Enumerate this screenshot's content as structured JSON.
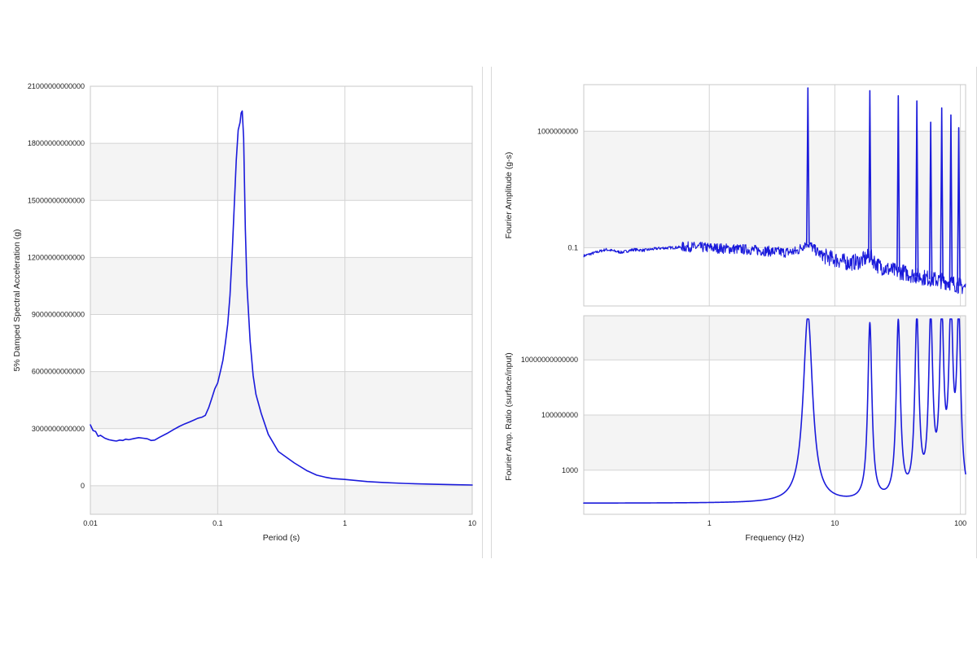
{
  "colors": {
    "series": "#1a1adb",
    "band": "#f4f4f4",
    "grid": "#d4d4d4"
  },
  "chart_data": [
    {
      "id": "response-spectrum",
      "type": "line",
      "xlabel": "Period (s)",
      "ylabel": "5% Damped Spectral Acceleration (g)",
      "xscale": "log",
      "xlim": [
        0.01,
        10
      ],
      "ylim": [
        -1500000000000,
        21000000000000
      ],
      "x_ticks": [
        {
          "value": 0.01,
          "label": "0.01"
        },
        {
          "value": 0.1,
          "label": "0.1"
        },
        {
          "value": 1,
          "label": "1"
        },
        {
          "value": 10,
          "label": "10"
        }
      ],
      "y_ticks": [
        {
          "value": 21000000000000,
          "label": "21000000000000"
        },
        {
          "value": 18000000000000,
          "label": "18000000000000"
        },
        {
          "value": 15000000000000,
          "label": "15000000000000"
        },
        {
          "value": 12000000000000,
          "label": "12000000000000"
        },
        {
          "value": 9000000000000,
          "label": "9000000000000"
        },
        {
          "value": 6000000000000,
          "label": "6000000000000"
        },
        {
          "value": 3000000000000,
          "label": "3000000000000"
        },
        {
          "value": 0,
          "label": "0"
        }
      ],
      "grid": true,
      "series": [
        {
          "x": [
            0.01,
            0.0105,
            0.011,
            0.0115,
            0.012,
            0.013,
            0.014,
            0.015,
            0.016,
            0.017,
            0.018,
            0.019,
            0.02,
            0.022,
            0.024,
            0.026,
            0.028,
            0.03,
            0.032,
            0.035,
            0.04,
            0.045,
            0.05,
            0.055,
            0.06,
            0.065,
            0.07,
            0.075,
            0.08,
            0.085,
            0.09,
            0.095,
            0.1,
            0.105,
            0.11,
            0.115,
            0.12,
            0.125,
            0.13,
            0.135,
            0.14,
            0.145,
            0.15,
            0.153,
            0.156,
            0.16,
            0.165,
            0.17,
            0.18,
            0.19,
            0.2,
            0.22,
            0.25,
            0.3,
            0.4,
            0.5,
            0.6,
            0.7,
            0.8,
            1,
            1.5,
            2,
            3,
            5,
            7,
            10
          ],
          "y": [
            3200000000000,
            2900000000000,
            2850000000000,
            2600000000000,
            2650000000000,
            2500000000000,
            2420000000000,
            2380000000000,
            2350000000000,
            2400000000000,
            2380000000000,
            2450000000000,
            2420000000000,
            2480000000000,
            2530000000000,
            2500000000000,
            2470000000000,
            2380000000000,
            2400000000000,
            2550000000000,
            2750000000000,
            2950000000000,
            3120000000000,
            3250000000000,
            3350000000000,
            3450000000000,
            3550000000000,
            3600000000000,
            3700000000000,
            4100000000000,
            4600000000000,
            5100000000000,
            5400000000000,
            6000000000000,
            6600000000000,
            7500000000000,
            8500000000000,
            10000000000000,
            12200000000000,
            14700000000000,
            17100000000000,
            18700000000000,
            19100000000000,
            19600000000000,
            19700000000000,
            18300000000000,
            13500000000000,
            10500000000000,
            7600000000000,
            5800000000000,
            4800000000000,
            3800000000000,
            2700000000000,
            1800000000000,
            1200000000000,
            800000000000,
            560000000000,
            450000000000,
            380000000000,
            330000000000,
            220000000000,
            170000000000,
            120000000000,
            80000000000,
            60000000000,
            40000000000
          ]
        }
      ]
    },
    {
      "id": "fourier-amplitude",
      "type": "line",
      "xlabel": "",
      "ylabel": "Fourier Amplitude (g-s)",
      "xscale": "log",
      "yscale": "log",
      "xlim": [
        0.1,
        110
      ],
      "ylim": [
        1e-06,
        10000000000000
      ],
      "x_ticks": [
        {
          "value": 1,
          "label": ""
        },
        {
          "value": 10,
          "label": ""
        },
        {
          "value": 100,
          "label": ""
        }
      ],
      "y_ticks": [
        {
          "value": 1000000000,
          "label": "1000000000"
        },
        {
          "value": 0.1,
          "label": "0.1"
        }
      ],
      "grid": true,
      "baseline": [
        [
          0.1,
          0.02
        ],
        [
          0.15,
          0.07
        ],
        [
          0.2,
          0.04
        ],
        [
          0.25,
          0.07
        ],
        [
          0.3,
          0.06
        ],
        [
          0.4,
          0.09
        ],
        [
          0.5,
          0.1
        ],
        [
          0.7,
          0.12
        ],
        [
          1,
          0.1
        ],
        [
          1.5,
          0.08
        ],
        [
          2,
          0.07
        ],
        [
          3,
          0.05
        ],
        [
          4,
          0.04
        ],
        [
          5,
          0.05
        ],
        [
          6,
          0.3
        ],
        [
          7,
          0.06
        ],
        [
          8,
          0.02
        ],
        [
          10,
          0.01
        ],
        [
          13,
          0.005
        ],
        [
          16,
          0.007
        ],
        [
          19,
          0.02
        ],
        [
          22,
          0.003
        ],
        [
          26,
          0.0015
        ],
        [
          30,
          0.001
        ],
        [
          35,
          0.0008
        ],
        [
          40,
          0.0005
        ],
        [
          50,
          0.0003
        ],
        [
          60,
          0.0002
        ],
        [
          70,
          0.00015
        ],
        [
          85,
          0.0001
        ],
        [
          100,
          5e-05
        ],
        [
          110,
          4e-05
        ]
      ],
      "peaks": [
        {
          "x": 6.1,
          "y": 100000000000000
        },
        {
          "x": 19,
          "y": 3000000000000
        },
        {
          "x": 32,
          "y": 1100000000000
        },
        {
          "x": 45,
          "y": 400000000000
        },
        {
          "x": 58,
          "y": 6000000000
        },
        {
          "x": 71,
          "y": 100000000000
        },
        {
          "x": 84,
          "y": 25000000000
        },
        {
          "x": 97,
          "y": 2000000000
        }
      ]
    },
    {
      "id": "amplification-ratio",
      "type": "line",
      "xlabel": "Frequency (Hz)",
      "ylabel": "Fourier Amp. Ratio (surface/input)",
      "xscale": "log",
      "yscale": "log",
      "xlim": [
        0.1,
        110
      ],
      "ylim": [
        0.1,
        100000000000000000
      ],
      "x_ticks": [
        {
          "value": 1,
          "label": "1"
        },
        {
          "value": 10,
          "label": "10"
        },
        {
          "value": 100,
          "label": "100"
        }
      ],
      "y_ticks": [
        {
          "value": 10000000000000,
          "label": "10000000000000"
        },
        {
          "value": 100000000,
          "label": "100000000"
        },
        {
          "value": 1000,
          "label": "1000"
        }
      ],
      "grid": true,
      "baseline_value": 1,
      "peaks": [
        {
          "x": 6.1,
          "y": 100000000000000000
        },
        {
          "x": 19,
          "y": 10000000000000000
        },
        {
          "x": 32,
          "y": 10000000000000000
        },
        {
          "x": 45,
          "y": 10000000000000000
        },
        {
          "x": 58,
          "y": 6000000000000000
        },
        {
          "x": 71,
          "y": 6000000000000000
        },
        {
          "x": 84,
          "y": 6000000000000000
        },
        {
          "x": 97,
          "y": 6000000000000000
        }
      ]
    }
  ]
}
